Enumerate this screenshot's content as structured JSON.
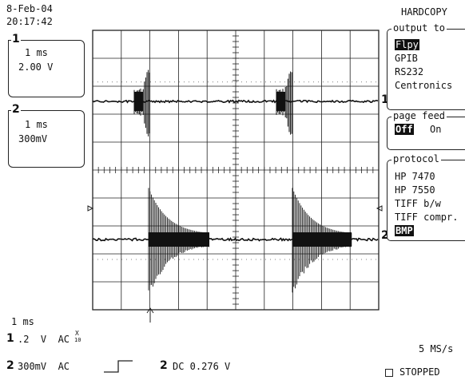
{
  "header": {
    "date": "8-Feb-04",
    "time": "20:17:42",
    "title": "HARDCOPY"
  },
  "channels": [
    {
      "num": "1",
      "timebase": "1 ms",
      "scale": "2.00 V"
    },
    {
      "num": "2",
      "timebase": "1 ms",
      "scale": "300mV"
    }
  ],
  "menu": {
    "output": {
      "legend": "output to",
      "items": [
        "Flpy",
        "GPIB",
        "RS232",
        "Centronics"
      ],
      "selected": "Flpy"
    },
    "page_feed": {
      "legend": "page feed",
      "options": [
        "Off",
        "On"
      ],
      "selected": "Off"
    },
    "protocol": {
      "legend": "protocol",
      "items": [
        "HP 7470",
        "HP 7550",
        "TIFF b/w",
        "TIFF compr.",
        "BMP"
      ],
      "selected": "BMP"
    }
  },
  "markers": {
    "ch1": "1",
    "ch2": "2"
  },
  "status": {
    "timebase": "1 ms",
    "ch1_num": "1",
    "ch1_setting": ".2  V  AC",
    "ch1_probe_top": "X",
    "ch1_probe_bottom": "10",
    "ch2_num": "2",
    "ch2_setting": "300mV  AC",
    "trigger_num": "2",
    "trigger_setting": "DC 0.276 V",
    "sample_rate": "5 MS/s",
    "run_state": "STOPPED"
  }
}
